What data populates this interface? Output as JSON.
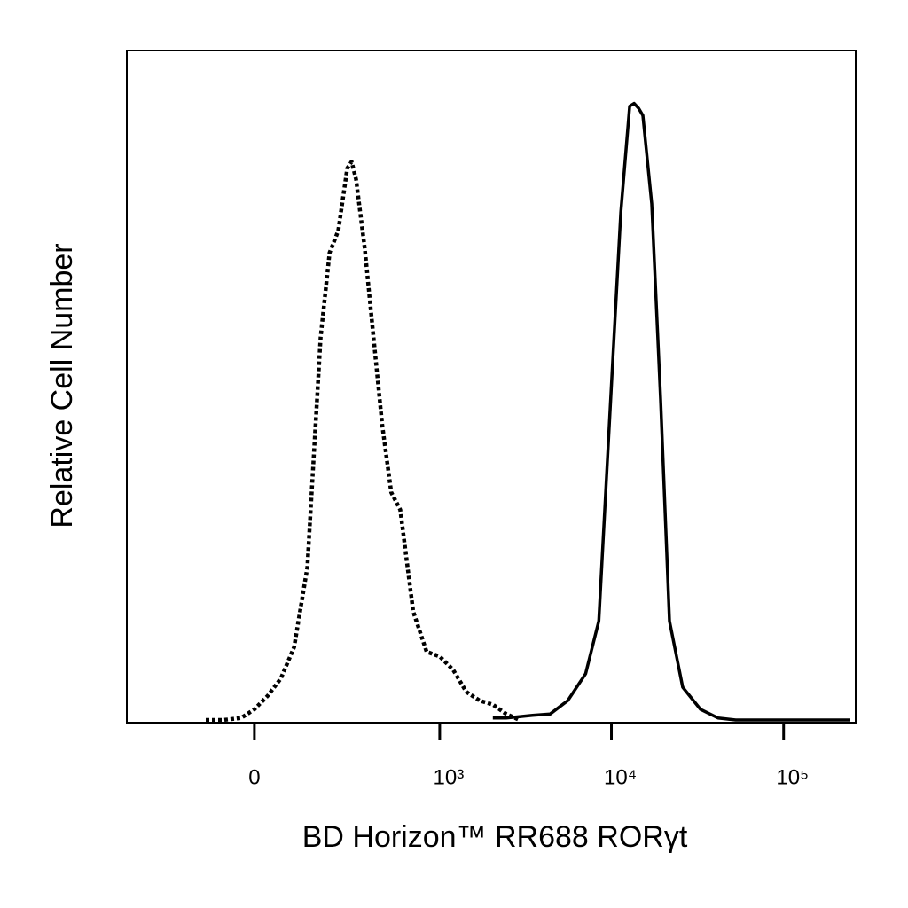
{
  "chart_data": {
    "type": "line",
    "x_label": "BD Horizon™ RR688 RORγt",
    "y_label": "Relative Cell Number",
    "xscale": "biexponential",
    "xlim": [
      -450,
      262144
    ],
    "xticks": [
      0,
      {
        "value": 1000,
        "label": "10³"
      },
      {
        "value": 10000,
        "label": "10⁴"
      },
      {
        "value": 100000,
        "label": "10⁵"
      }
    ],
    "ylim": [
      0,
      100
    ],
    "x": [
      -118,
      -72,
      -30,
      0,
      30,
      61,
      94,
      130,
      170,
      200,
      232,
      268,
      287,
      307,
      350,
      398,
      452,
      513,
      582,
      696,
      837,
      1000,
      1198,
      1433,
      1712,
      2045,
      2444,
      2920,
      3480,
      4410,
      5580,
      7080,
      8450,
      10090,
      11340,
      12770,
      13550,
      14370,
      15240,
      17150,
      19300,
      21730,
      25940,
      32870,
      41600,
      52700,
      84500,
      152300,
      244200
    ],
    "series": [
      {
        "color": "#000000",
        "style": "dotted",
        "values": [
          0,
          0,
          0.3,
          1.6,
          3.6,
          6.2,
          10.9,
          22.8,
          57.2,
          69.8,
          73.1,
          82.4,
          83.4,
          80.8,
          70.5,
          57.2,
          44,
          34,
          31.4,
          16.2,
          10.2,
          9.5,
          7.5,
          4.2,
          2.9,
          2.3,
          0.9,
          0,
          null,
          null,
          null,
          null,
          null,
          null,
          null,
          null,
          null,
          null,
          null,
          null,
          null,
          null,
          null,
          null,
          null,
          null,
          null,
          null,
          null
        ]
      },
      {
        "color": "#000000",
        "style": "solid",
        "values": [
          null,
          null,
          null,
          null,
          null,
          null,
          null,
          null,
          null,
          null,
          null,
          null,
          null,
          null,
          null,
          null,
          null,
          null,
          null,
          null,
          null,
          null,
          null,
          null,
          null,
          0.3,
          0.3,
          0.5,
          0.7,
          0.9,
          2.9,
          6.9,
          14.8,
          51.9,
          75.8,
          91.7,
          92.1,
          91.4,
          90.3,
          77.1,
          47.9,
          14.8,
          4.9,
          1.6,
          0.3,
          0,
          0,
          0,
          0
        ]
      }
    ]
  }
}
